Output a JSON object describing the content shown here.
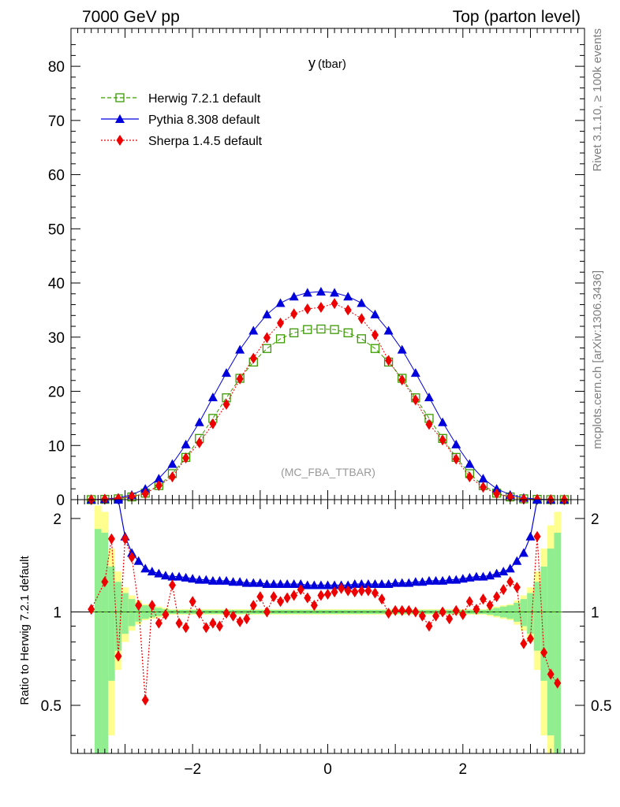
{
  "header": {
    "left": "7000 GeV pp",
    "right": "Top (parton level)"
  },
  "side_labels": {
    "rivet": "Rivet 3.1.10, ≥ 100k events",
    "mcplots": "mcplots.cern.ch [arXiv:1306.3436]"
  },
  "chart_data": [
    {
      "type": "line",
      "title": "y",
      "title_suffix": "(tbar)",
      "watermark": "(MC_FBA_TTBAR)",
      "xlim": [
        -3.8,
        3.8
      ],
      "ylim": [
        0,
        87
      ],
      "y_ticks": [
        0,
        10,
        20,
        30,
        40,
        50,
        60,
        70,
        80
      ],
      "legend_position": "top-left",
      "series": [
        {
          "name": "Herwig 7.2.1 default",
          "color": "#3a9a00",
          "marker": "open-square",
          "line": "dashed",
          "x": [
            -3.5,
            -3.3,
            -3.1,
            -2.9,
            -2.7,
            -2.5,
            -2.3,
            -2.1,
            -1.9,
            -1.7,
            -1.5,
            -1.3,
            -1.1,
            -0.9,
            -0.7,
            -0.5,
            -0.3,
            -0.1,
            0.1,
            0.3,
            0.5,
            0.7,
            0.9,
            1.1,
            1.3,
            1.5,
            1.7,
            1.9,
            2.1,
            2.3,
            2.5,
            2.7,
            2.9,
            3.1,
            3.3,
            3.5
          ],
          "values": [
            0.0,
            0.05,
            0.15,
            0.5,
            1.2,
            2.6,
            4.8,
            7.8,
            11.3,
            15.0,
            18.8,
            22.4,
            25.4,
            27.9,
            29.7,
            30.8,
            31.4,
            31.5,
            31.4,
            30.8,
            29.7,
            27.9,
            25.4,
            22.4,
            18.8,
            15.0,
            11.3,
            7.8,
            4.8,
            2.6,
            1.2,
            0.5,
            0.15,
            0.05,
            0.0,
            0.0
          ]
        },
        {
          "name": "Pythia 8.308 default",
          "color": "#0000dd",
          "marker": "filled-triangle",
          "line": "solid",
          "x": [
            -3.5,
            -3.3,
            -3.1,
            -2.9,
            -2.7,
            -2.5,
            -2.3,
            -2.1,
            -1.9,
            -1.7,
            -1.5,
            -1.3,
            -1.1,
            -0.9,
            -0.7,
            -0.5,
            -0.3,
            -0.1,
            0.1,
            0.3,
            0.5,
            0.7,
            0.9,
            1.1,
            1.3,
            1.5,
            1.7,
            1.9,
            2.1,
            2.3,
            2.5,
            2.7,
            2.9,
            3.1,
            3.3,
            3.5
          ],
          "values": [
            0.0,
            0.1,
            0.35,
            0.9,
            2.0,
            3.9,
            6.6,
            10.2,
            14.3,
            18.9,
            23.4,
            27.7,
            31.2,
            34.2,
            36.3,
            37.5,
            38.2,
            38.4,
            38.2,
            37.5,
            36.3,
            34.2,
            31.2,
            27.7,
            23.4,
            18.9,
            14.3,
            10.2,
            6.6,
            3.9,
            2.0,
            0.9,
            0.35,
            0.1,
            0.0,
            0.0
          ]
        },
        {
          "name": "Sherpa 1.4.5 default",
          "color": "#ee0000",
          "marker": "filled-diamond",
          "line": "dotted",
          "x": [
            -3.5,
            -3.3,
            -3.1,
            -2.9,
            -2.7,
            -2.5,
            -2.3,
            -2.1,
            -1.9,
            -1.7,
            -1.5,
            -1.3,
            -1.1,
            -0.9,
            -0.7,
            -0.5,
            -0.3,
            -0.1,
            0.1,
            0.3,
            0.5,
            0.7,
            0.9,
            1.1,
            1.3,
            1.5,
            1.7,
            1.9,
            2.1,
            2.3,
            2.5,
            2.7,
            2.9,
            3.1,
            3.3,
            3.5
          ],
          "values": [
            0.0,
            0.1,
            0.2,
            0.6,
            1.1,
            2.6,
            4.2,
            7.7,
            10.5,
            14.0,
            17.6,
            22.3,
            26.1,
            29.9,
            32.6,
            34.3,
            35.2,
            35.5,
            36.2,
            35.0,
            33.4,
            30.4,
            25.7,
            22.1,
            18.4,
            13.9,
            11.0,
            7.5,
            4.2,
            2.3,
            1.1,
            0.5,
            0.1,
            0.05,
            0.0,
            0.0
          ]
        }
      ]
    },
    {
      "type": "line",
      "ylabel": "Ratio to Herwig 7.2.1 default",
      "xlim": [
        -3.8,
        3.8
      ],
      "ylim": [
        0.35,
        2.3
      ],
      "x_ticks": [
        -2,
        0,
        2
      ],
      "y_ticks": [
        0.5,
        1,
        2
      ],
      "log_y": true,
      "reference_line": 1,
      "band": {
        "x_edges": [
          -3.45,
          -3.35,
          -3.25,
          -3.15,
          -3.05,
          -2.95,
          -2.85,
          -2.75,
          -2.65,
          -2.55,
          -2.45,
          -2.35,
          2.35,
          2.45,
          2.55,
          2.65,
          2.75,
          2.85,
          2.95,
          3.05,
          3.15,
          3.25,
          3.35,
          3.45
        ],
        "inner_halfwidth": [
          0.85,
          0.8,
          0.4,
          0.25,
          0.15,
          0.1,
          0.07,
          0.05,
          0.04,
          0.03,
          0.02,
          0.015,
          0.02,
          0.03,
          0.04,
          0.05,
          0.07,
          0.1,
          0.15,
          0.25,
          0.4,
          0.6,
          0.8,
          0.85
        ],
        "outer_halfwidth": [
          1.2,
          1.1,
          0.6,
          0.35,
          0.2,
          0.13,
          0.09,
          0.06,
          0.05,
          0.04,
          0.03,
          0.02,
          0.03,
          0.04,
          0.05,
          0.06,
          0.09,
          0.13,
          0.2,
          0.35,
          0.6,
          0.9,
          1.1,
          1.2
        ],
        "inner_color": "#90ee90",
        "outer_color": "#ffff90"
      },
      "series": [
        {
          "name": "Herwig 7.2.1 default",
          "color": "#3a9a00",
          "x": [
            -3.5,
            3.5
          ],
          "values": [
            1.0,
            1.0
          ]
        },
        {
          "name": "Pythia 8.308 default",
          "color": "#0000dd",
          "x": [
            -3.1,
            -3.0,
            -2.9,
            -2.8,
            -2.7,
            -2.6,
            -2.5,
            -2.4,
            -2.3,
            -2.2,
            -2.1,
            -2.0,
            -1.9,
            -1.8,
            -1.7,
            -1.6,
            -1.5,
            -1.4,
            -1.3,
            -1.2,
            -1.1,
            -1.0,
            -0.9,
            -0.8,
            -0.7,
            -0.6,
            -0.5,
            -0.4,
            -0.3,
            -0.2,
            -0.1,
            0.0,
            0.1,
            0.2,
            0.3,
            0.4,
            0.5,
            0.6,
            0.7,
            0.8,
            0.9,
            1.0,
            1.1,
            1.2,
            1.3,
            1.4,
            1.5,
            1.6,
            1.7,
            1.8,
            1.9,
            2.0,
            2.1,
            2.2,
            2.3,
            2.4,
            2.5,
            2.6,
            2.7,
            2.8,
            2.9,
            3.0,
            3.1
          ],
          "values": [
            2.3,
            1.75,
            1.55,
            1.46,
            1.38,
            1.35,
            1.33,
            1.31,
            1.3,
            1.3,
            1.29,
            1.28,
            1.27,
            1.27,
            1.26,
            1.26,
            1.26,
            1.25,
            1.25,
            1.24,
            1.24,
            1.24,
            1.23,
            1.23,
            1.23,
            1.23,
            1.23,
            1.23,
            1.22,
            1.22,
            1.22,
            1.22,
            1.22,
            1.22,
            1.22,
            1.23,
            1.23,
            1.23,
            1.23,
            1.23,
            1.23,
            1.24,
            1.24,
            1.24,
            1.25,
            1.25,
            1.26,
            1.26,
            1.26,
            1.27,
            1.27,
            1.28,
            1.29,
            1.3,
            1.3,
            1.31,
            1.33,
            1.35,
            1.38,
            1.46,
            1.55,
            1.75,
            2.3
          ]
        },
        {
          "name": "Sherpa 1.4.5 default",
          "color": "#ee0000",
          "x": [
            -3.5,
            -3.3,
            -3.2,
            -3.1,
            -3.0,
            -2.9,
            -2.8,
            -2.7,
            -2.6,
            -2.5,
            -2.4,
            -2.3,
            -2.2,
            -2.1,
            -2.0,
            -1.9,
            -1.8,
            -1.7,
            -1.6,
            -1.5,
            -1.4,
            -1.3,
            -1.2,
            -1.1,
            -1.0,
            -0.9,
            -0.8,
            -0.7,
            -0.6,
            -0.5,
            -0.4,
            -0.3,
            -0.2,
            -0.1,
            0.0,
            0.1,
            0.2,
            0.3,
            0.4,
            0.5,
            0.6,
            0.7,
            0.8,
            0.9,
            1.0,
            1.1,
            1.2,
            1.3,
            1.4,
            1.5,
            1.6,
            1.7,
            1.8,
            1.9,
            2.0,
            2.1,
            2.2,
            2.3,
            2.4,
            2.5,
            2.6,
            2.7,
            2.8,
            2.9,
            3.0,
            3.1,
            3.2,
            3.3,
            3.4
          ],
          "values": [
            1.02,
            1.25,
            1.72,
            0.72,
            1.72,
            1.5,
            1.05,
            0.52,
            1.05,
            0.92,
            0.98,
            1.22,
            0.92,
            0.89,
            1.08,
            0.99,
            0.89,
            0.92,
            0.9,
            0.99,
            0.97,
            0.93,
            0.95,
            1.05,
            1.12,
            1.0,
            1.12,
            1.08,
            1.11,
            1.13,
            1.18,
            1.11,
            1.05,
            1.13,
            1.14,
            1.16,
            1.19,
            1.17,
            1.16,
            1.17,
            1.17,
            1.15,
            1.1,
            0.99,
            1.01,
            1.01,
            1.01,
            1.0,
            0.97,
            0.9,
            0.97,
            1.0,
            0.95,
            1.01,
            0.98,
            1.08,
            1.02,
            1.1,
            1.05,
            1.12,
            1.18,
            1.25,
            1.2,
            0.79,
            0.82,
            1.75,
            0.74,
            0.63,
            0.59
          ]
        }
      ]
    }
  ]
}
